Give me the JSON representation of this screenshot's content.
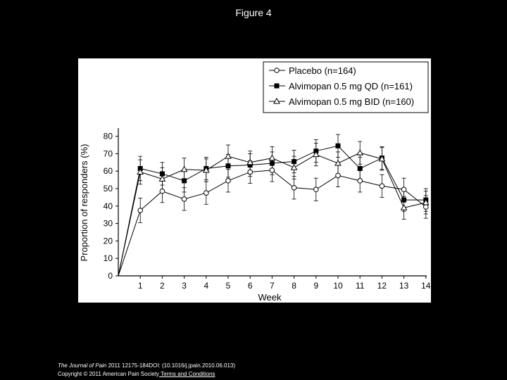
{
  "page": {
    "title": "Figure 4",
    "footer": {
      "journal": "The Journal of Pain",
      "citation": " 2011 12175-184DOI: (10.1016/j.jpain.2010.06.013) ",
      "copyright": "Copyright © 2011 American Pain Society",
      "terms_link": " Terms and Conditions"
    }
  },
  "colors": {
    "background": "#000000",
    "panel": "#ffffff",
    "ink": "#000000",
    "open_marker": "#ffffff"
  },
  "chart_data": {
    "type": "line",
    "title": "",
    "xlabel": "Week",
    "ylabel": "Proportion of responders (%)",
    "xlim": [
      0,
      14
    ],
    "ylim": [
      0,
      80
    ],
    "x_ticks": [
      1,
      2,
      3,
      4,
      5,
      6,
      7,
      8,
      9,
      10,
      11,
      12,
      13,
      14
    ],
    "y_ticks": [
      0,
      10,
      20,
      30,
      40,
      50,
      60,
      70,
      80
    ],
    "grid": false,
    "legend_position": "top-right",
    "x": [
      0,
      1,
      2,
      3,
      4,
      5,
      6,
      7,
      8,
      9,
      10,
      11,
      12,
      13,
      14
    ],
    "series": [
      {
        "name": "Placebo (n=164)",
        "marker": "circle-open",
        "values": [
          0,
          37.5,
          48.5,
          44,
          47.5,
          54.5,
          59.5,
          60.5,
          50.5,
          49.5,
          57.5,
          54.5,
          51.5,
          49.5,
          39.5
        ],
        "err": [
          0,
          7,
          6.5,
          6.5,
          6.5,
          6.5,
          6.5,
          6.5,
          6.5,
          6.5,
          6.5,
          6.5,
          6.5,
          6.5,
          6.5
        ]
      },
      {
        "name": "Alvimopan 0.5 mg QD (n=161)",
        "marker": "square-filled",
        "values": [
          0,
          61.5,
          58.5,
          54.5,
          61.5,
          63,
          63.5,
          64.5,
          65.5,
          71.5,
          74.5,
          61.5,
          67.5,
          43.5,
          43.5
        ],
        "err": [
          0,
          7,
          6.5,
          6.5,
          6.5,
          6.5,
          6.5,
          6.5,
          6.5,
          6.5,
          6.5,
          6.5,
          6.5,
          6.5,
          6.5
        ]
      },
      {
        "name": "Alvimopan 0.5 mg BID (n=160)",
        "marker": "triangle-open",
        "values": [
          0,
          59.5,
          55.5,
          61,
          60.5,
          68.5,
          65,
          67.5,
          62,
          69.5,
          64.5,
          70.5,
          67,
          39,
          42
        ],
        "err": [
          0,
          7,
          6.5,
          6.5,
          6.5,
          6.5,
          6.5,
          6.5,
          6.5,
          6.5,
          6.5,
          6.5,
          6.5,
          6.5,
          6.5
        ]
      }
    ]
  }
}
